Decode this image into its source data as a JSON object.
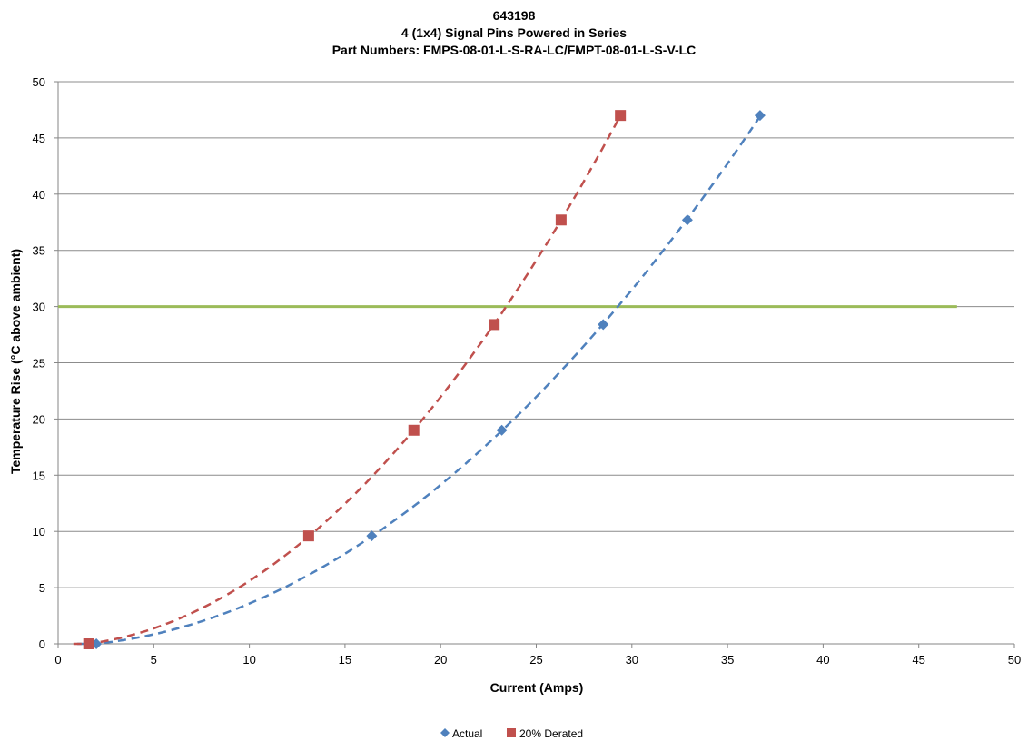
{
  "chart_data": {
    "type": "scatter",
    "title": "643198",
    "subtitle_lines": [
      "4 (1x4)  Signal  Pins Powered in Series",
      "Part Numbers: FMPS-08-01-L-S-RA-LC/FMPT-08-01-L-S-V-LC"
    ],
    "xlabel": "Current (Amps)",
    "ylabel": "Temperature Rise (°C above ambient)",
    "xlim": [
      0,
      50
    ],
    "ylim": [
      0,
      50
    ],
    "x_ticks": [
      0,
      5,
      10,
      15,
      20,
      25,
      30,
      35,
      40,
      45,
      50
    ],
    "y_ticks": [
      0,
      5,
      10,
      15,
      20,
      25,
      30,
      35,
      40,
      45,
      50
    ],
    "grid": "horizontal",
    "legend_position": "bottom",
    "series": [
      {
        "name": "Actual",
        "marker": "diamond",
        "color": "#4F81BD",
        "x": [
          2.0,
          16.4,
          23.2,
          28.5,
          32.9,
          36.7
        ],
        "y": [
          0.0,
          9.6,
          19.0,
          28.4,
          37.7,
          47.0
        ],
        "trendline": "dashed"
      },
      {
        "name": "20% Derated",
        "marker": "square",
        "color": "#C0504D",
        "x": [
          1.6,
          13.1,
          18.6,
          22.8,
          26.3,
          29.4
        ],
        "y": [
          0.0,
          9.6,
          19.0,
          28.4,
          37.7,
          47.0
        ],
        "trendline": "dashed"
      }
    ],
    "reference_line": {
      "y": 30,
      "x_range": [
        0,
        47
      ],
      "color": "#9BBB59"
    }
  }
}
